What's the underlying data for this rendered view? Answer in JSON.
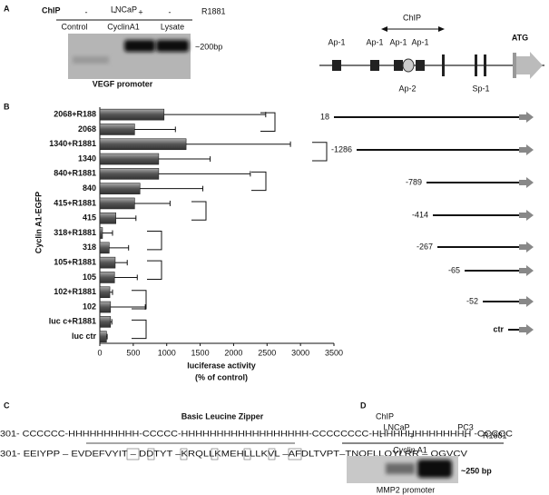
{
  "panel_a": {
    "letter": "A",
    "chip": "ChIP",
    "cell_line": "LNCaP",
    "treatment": "R1881",
    "signs": [
      "-",
      "-",
      "+",
      "-"
    ],
    "lanes": [
      "Control",
      "CyclinA1",
      "Lysate"
    ],
    "band_size": "~200bp",
    "caption": "VEGF promoter"
  },
  "promoter": {
    "chip": "ChIP",
    "sites": [
      "Ap-1",
      "Ap-1",
      "Ap-1",
      "Ap-1"
    ],
    "ap2": "Ap-2",
    "sp1": "Sp-1",
    "atg": "ATG"
  },
  "chart_data": {
    "type": "bar",
    "orientation": "horizontal",
    "label": "B",
    "ylabel": "Cyclin A1-EGFP",
    "xlabel": [
      "luciferase activity",
      "(% of control)"
    ],
    "categories": [
      "2068+R188",
      "2068",
      "1340+R1881",
      "1340",
      "840+R1881",
      "840",
      "415+R1881",
      "415",
      "318+R1881",
      "318",
      "105+R1881",
      "105",
      "102+R1881",
      "102",
      "luc c+R1881",
      "luc ctr"
    ],
    "values": [
      960,
      520,
      1290,
      880,
      880,
      600,
      520,
      240,
      40,
      140,
      230,
      220,
      150,
      160,
      160,
      100
    ],
    "errors": [
      1520,
      610,
      1560,
      770,
      1370,
      940,
      530,
      300,
      150,
      290,
      180,
      340,
      40,
      520,
      20,
      10
    ],
    "color": "#5a5a5a",
    "xlim": [
      0,
      3500
    ],
    "xticks": [
      0,
      500,
      1000,
      1500,
      2000,
      2500,
      3000,
      3500
    ]
  },
  "constructs": [
    "18",
    "-1286",
    "-789",
    "-414",
    "-267",
    "-65",
    "-52",
    "ctr"
  ],
  "panel_c": {
    "letter": "C",
    "title": "Basic Leucine Zipper",
    "structure": "301- CCCCCC-HHHHHHHHHH-CCCCC-HHHHHHHHHHHHHHHHHH-CCCCCCCC-HHHHHHHHHHHHHH -CCCCC",
    "sequence": "301-  EEIYPP – EVDEFVYIT – DDTYT –KRQLLKMEHLLLKVL –AFDLTVPT–TNQFLLQYLRR – QGVCV"
  },
  "panel_d": {
    "letter": "D",
    "chip": "ChIP",
    "cell_lines": [
      "LNCaP",
      "PC3"
    ],
    "treatment": "R1881",
    "signs": [
      "-",
      "+",
      "-"
    ],
    "antibody": "Cyclin A1",
    "band_size": "~250 bp",
    "caption": "MMP2 promoter"
  }
}
